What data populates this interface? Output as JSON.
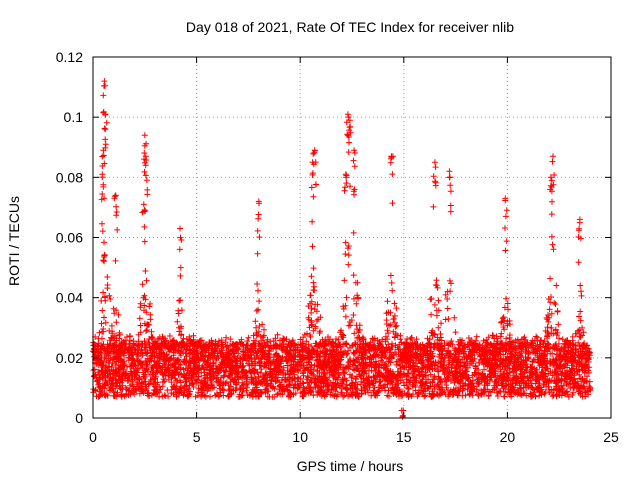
{
  "chart_data": {
    "type": "scatter",
    "title": "Day 018 of 2021, Rate Of TEC Index for receiver nlib",
    "xlabel": "GPS time / hours",
    "ylabel": "ROTI / TECUs",
    "xlim": [
      0,
      25
    ],
    "ylim": [
      0,
      0.12
    ],
    "x_ticks": [
      0,
      5,
      10,
      15,
      20,
      25
    ],
    "x_tick_labels": [
      "0",
      "5",
      "10",
      "15",
      "20",
      "25"
    ],
    "y_ticks": [
      0,
      0.02,
      0.04,
      0.06,
      0.08,
      0.1,
      0.12
    ],
    "y_tick_labels": [
      "0",
      "0.02",
      "0.04",
      "0.06",
      "0.08",
      "0.1",
      "0.12"
    ],
    "grid": true,
    "marker": "+",
    "marker_color": "#ff0000",
    "series": [
      {
        "name": "ROTI",
        "x_range": [
          0.0,
          24.0
        ],
        "typical_range": [
          0.005,
          0.03
        ],
        "peaks": [
          {
            "x": 0.55,
            "y": 0.112
          },
          {
            "x": 0.6,
            "y": 0.101
          },
          {
            "x": 0.5,
            "y": 0.089
          },
          {
            "x": 0.45,
            "y": 0.081
          },
          {
            "x": 1.1,
            "y": 0.074
          },
          {
            "x": 2.5,
            "y": 0.094
          },
          {
            "x": 2.55,
            "y": 0.087
          },
          {
            "x": 2.45,
            "y": 0.071
          },
          {
            "x": 4.2,
            "y": 0.063
          },
          {
            "x": 8.0,
            "y": 0.072
          },
          {
            "x": 10.7,
            "y": 0.089
          },
          {
            "x": 10.6,
            "y": 0.085
          },
          {
            "x": 12.3,
            "y": 0.101
          },
          {
            "x": 12.4,
            "y": 0.099
          },
          {
            "x": 12.2,
            "y": 0.081
          },
          {
            "x": 12.6,
            "y": 0.089
          },
          {
            "x": 14.4,
            "y": 0.087
          },
          {
            "x": 16.5,
            "y": 0.085
          },
          {
            "x": 17.2,
            "y": 0.082
          },
          {
            "x": 19.9,
            "y": 0.073
          },
          {
            "x": 22.2,
            "y": 0.087
          },
          {
            "x": 22.1,
            "y": 0.08
          },
          {
            "x": 23.5,
            "y": 0.066
          },
          {
            "x": 14.9,
            "y": 0.0025
          }
        ]
      }
    ]
  }
}
